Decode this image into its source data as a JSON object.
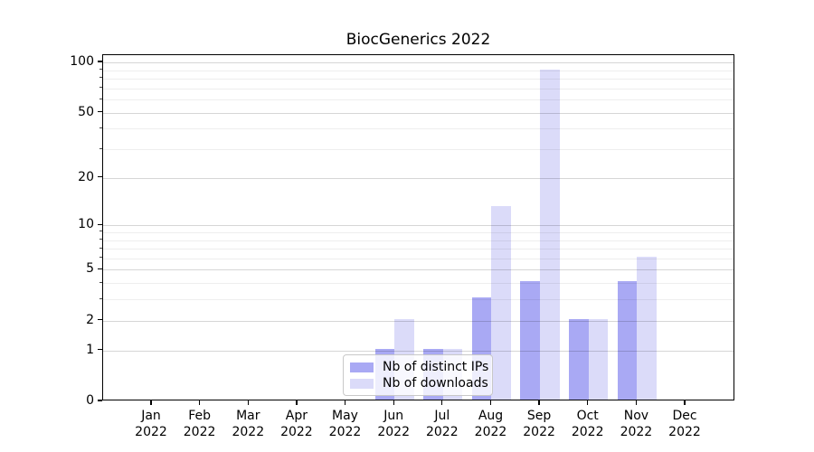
{
  "chart_data": {
    "type": "bar",
    "title": "BiocGenerics 2022",
    "categories": [
      "Jan",
      "Feb",
      "Mar",
      "Apr",
      "May",
      "Jun",
      "Jul",
      "Aug",
      "Sep",
      "Oct",
      "Nov",
      "Dec"
    ],
    "category_year": "2022",
    "series": [
      {
        "name": "Nb of distinct IPs",
        "color": "#a9a9f4",
        "values": [
          0,
          0,
          0,
          0,
          0,
          1,
          1,
          3,
          4,
          2,
          4,
          0
        ]
      },
      {
        "name": "Nb of downloads",
        "color": "#dbdbf9",
        "values": [
          0,
          0,
          0,
          0,
          0,
          2,
          1,
          13,
          88,
          2,
          6,
          0
        ]
      }
    ],
    "yscale": "log1p",
    "ylim": [
      0,
      110
    ],
    "y_ticks": [
      0,
      1,
      2,
      5,
      10,
      20,
      50,
      100
    ],
    "y_minor_ticks": [
      3,
      4,
      6,
      7,
      8,
      9,
      30,
      40,
      60,
      70,
      80,
      90
    ],
    "xlabel": "",
    "ylabel": "",
    "grid": true,
    "legend_position": "lower center"
  }
}
